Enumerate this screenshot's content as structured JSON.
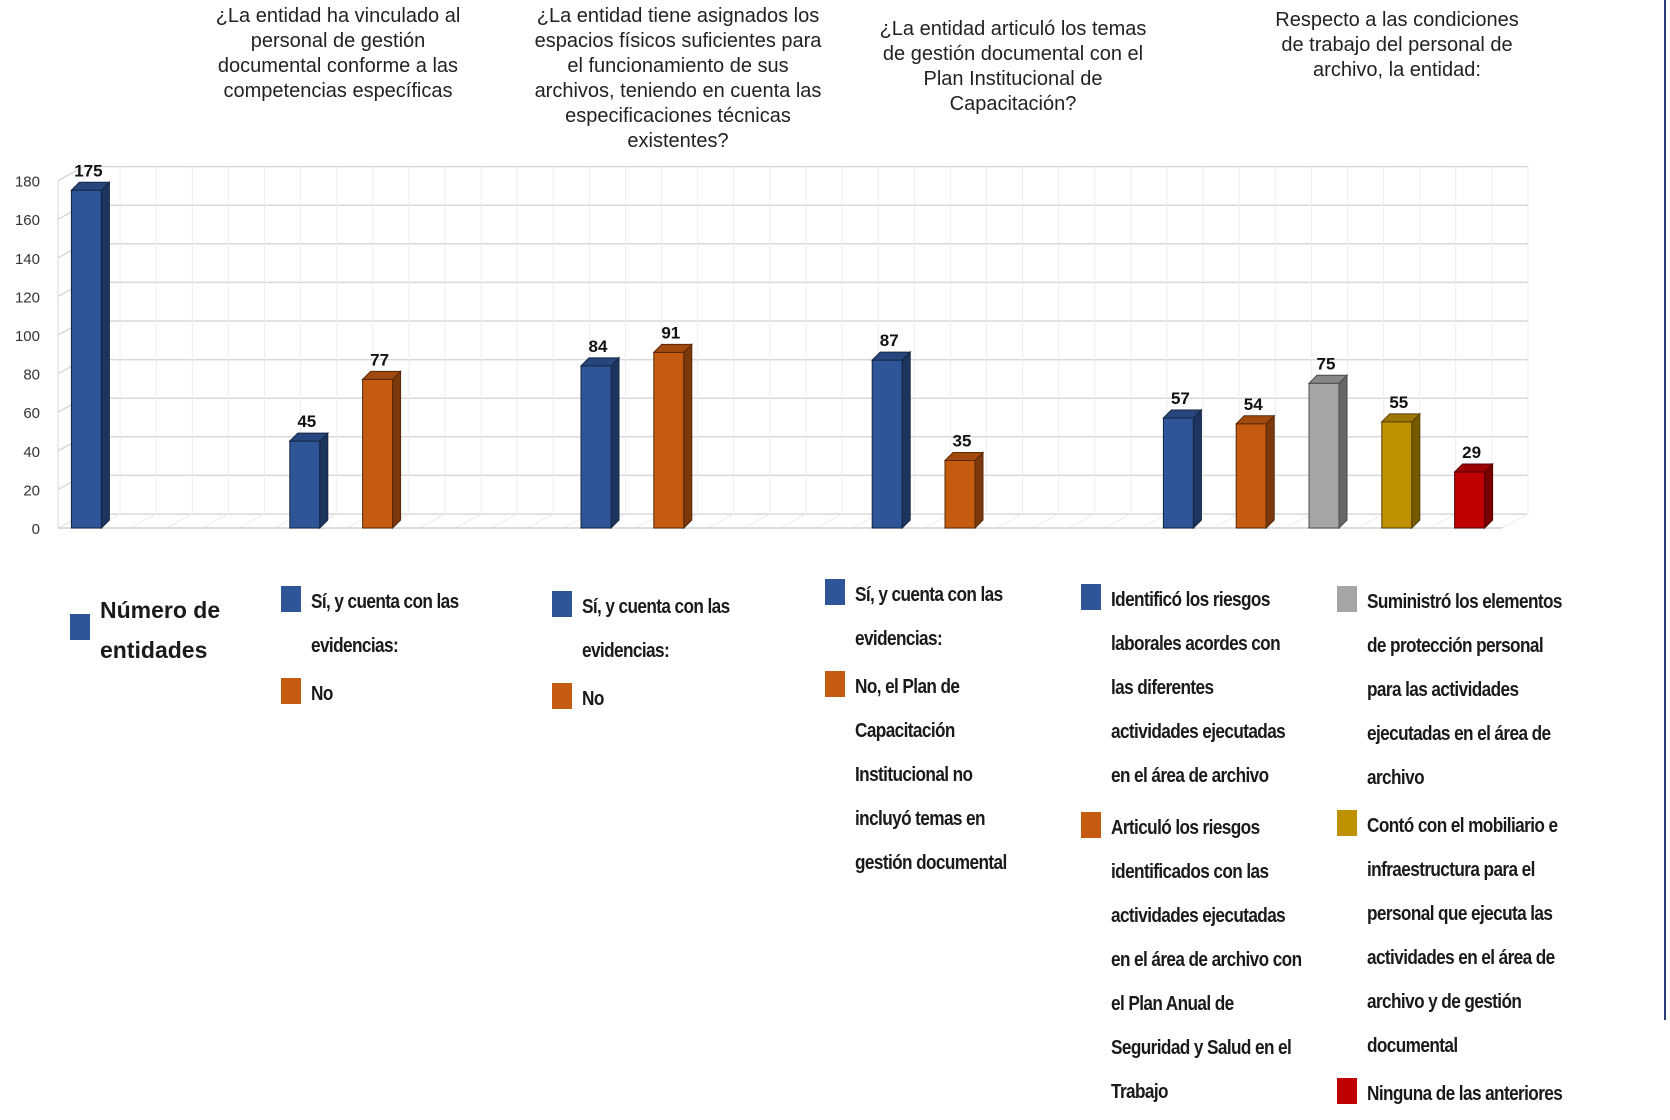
{
  "chart_data": {
    "type": "bar",
    "style": "3d-column",
    "yaxis": {
      "ylim": [
        0,
        180
      ],
      "ticks": [
        "0",
        "20",
        "40",
        "60",
        "80",
        "100",
        "120",
        "140",
        "160",
        "180"
      ]
    },
    "grid": true,
    "colors": {
      "blue": "#2e5598",
      "orange": "#c55a11",
      "gray": "#a5a5a5",
      "gold": "#bf9000",
      "red": "#c00000"
    },
    "groups": [
      {
        "title": "",
        "bars": [
          {
            "label": "Número de entidades",
            "value": 175,
            "color": "blue"
          }
        ]
      },
      {
        "title": "¿La entidad ha vinculado al personal de gestión documental conforme a las competencias específicas",
        "bars": [
          {
            "label": "Sí, y cuenta con las evidencias:",
            "value": 45,
            "color": "blue"
          },
          {
            "label": "No",
            "value": 77,
            "color": "orange"
          }
        ]
      },
      {
        "title": "¿La entidad tiene asignados los espacios físicos suficientes para el funcionamiento de sus archivos, teniendo en cuenta las especificaciones técnicas existentes?",
        "bars": [
          {
            "label": "Sí, y cuenta con las evidencias:",
            "value": 84,
            "color": "blue"
          },
          {
            "label": "No",
            "value": 91,
            "color": "orange"
          }
        ]
      },
      {
        "title": "¿La entidad articuló los temas de gestión documental con el Plan Institucional de Capacitación?",
        "bars": [
          {
            "label": "Sí, y cuenta con las evidencias:",
            "value": 87,
            "color": "blue"
          },
          {
            "label": "No, el Plan de Capacitación Institucional no incluyó temas en gestión documental",
            "value": 35,
            "color": "orange"
          }
        ]
      },
      {
        "title": "Respecto a las condiciones de trabajo del personal de archivo, la entidad:",
        "bars": [
          {
            "label": "Identificó los riesgos laborales acordes con las diferentes actividades ejecutadas en el área de archivo",
            "value": 57,
            "color": "blue"
          },
          {
            "label": "Articuló los riesgos identificados con las actividades ejecutadas en el área de archivo con el Plan Anual de Seguridad y Salud en el Trabajo",
            "value": 54,
            "color": "orange"
          },
          {
            "label": "Suministró los elementos de protección personal para las actividades ejecutadas en el área de archivo",
            "value": 75,
            "color": "gray"
          },
          {
            "label": "Contó con el mobiliario e infraestructura para el personal que ejecuta las actividades en el área de archivo y de gestión documental",
            "value": 55,
            "color": "gold"
          },
          {
            "label": "Ninguna de las anteriores",
            "value": 29,
            "color": "red"
          }
        ]
      }
    ]
  }
}
